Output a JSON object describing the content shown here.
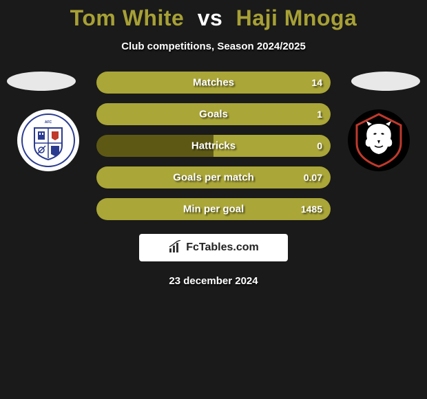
{
  "background_color": "#1a1a1a",
  "title": {
    "player1": "Tom White",
    "vs": "vs",
    "player2": "Haji Mnoga",
    "p1_color": "#a7a035",
    "vs_color": "#ffffff",
    "p2_color": "#a7a035",
    "fontsize": 32
  },
  "subtitle": "Club competitions, Season 2024/2025",
  "bar_colors": {
    "left": "#5d5915",
    "right": "#aaa638",
    "border_radius": 16
  },
  "stats": [
    {
      "label": "Matches",
      "left_val": "",
      "right_val": "14",
      "left_pct": 0,
      "right_pct": 100
    },
    {
      "label": "Goals",
      "left_val": "",
      "right_val": "1",
      "left_pct": 0,
      "right_pct": 100
    },
    {
      "label": "Hattricks",
      "left_val": "",
      "right_val": "0",
      "left_pct": 50,
      "right_pct": 50
    },
    {
      "label": "Goals per match",
      "left_val": "",
      "right_val": "0.07",
      "left_pct": 0,
      "right_pct": 100
    },
    {
      "label": "Min per goal",
      "left_val": "",
      "right_val": "1485",
      "left_pct": 0,
      "right_pct": 100
    }
  ],
  "ellipse_color": "#e8e8e8",
  "crest_left": {
    "bg": "#ffffff",
    "shield_fill": "#ffffff",
    "shield_stroke": "#2a3b8f",
    "label": "BARROW AFC",
    "label_color": "#2a3b8f"
  },
  "crest_right": {
    "bg": "#000000",
    "outer_stroke": "#c0392b",
    "lion_color": "#ffffff"
  },
  "branding": {
    "icon_color": "#333333",
    "text": "FcTables.com"
  },
  "date": "23 december 2024"
}
